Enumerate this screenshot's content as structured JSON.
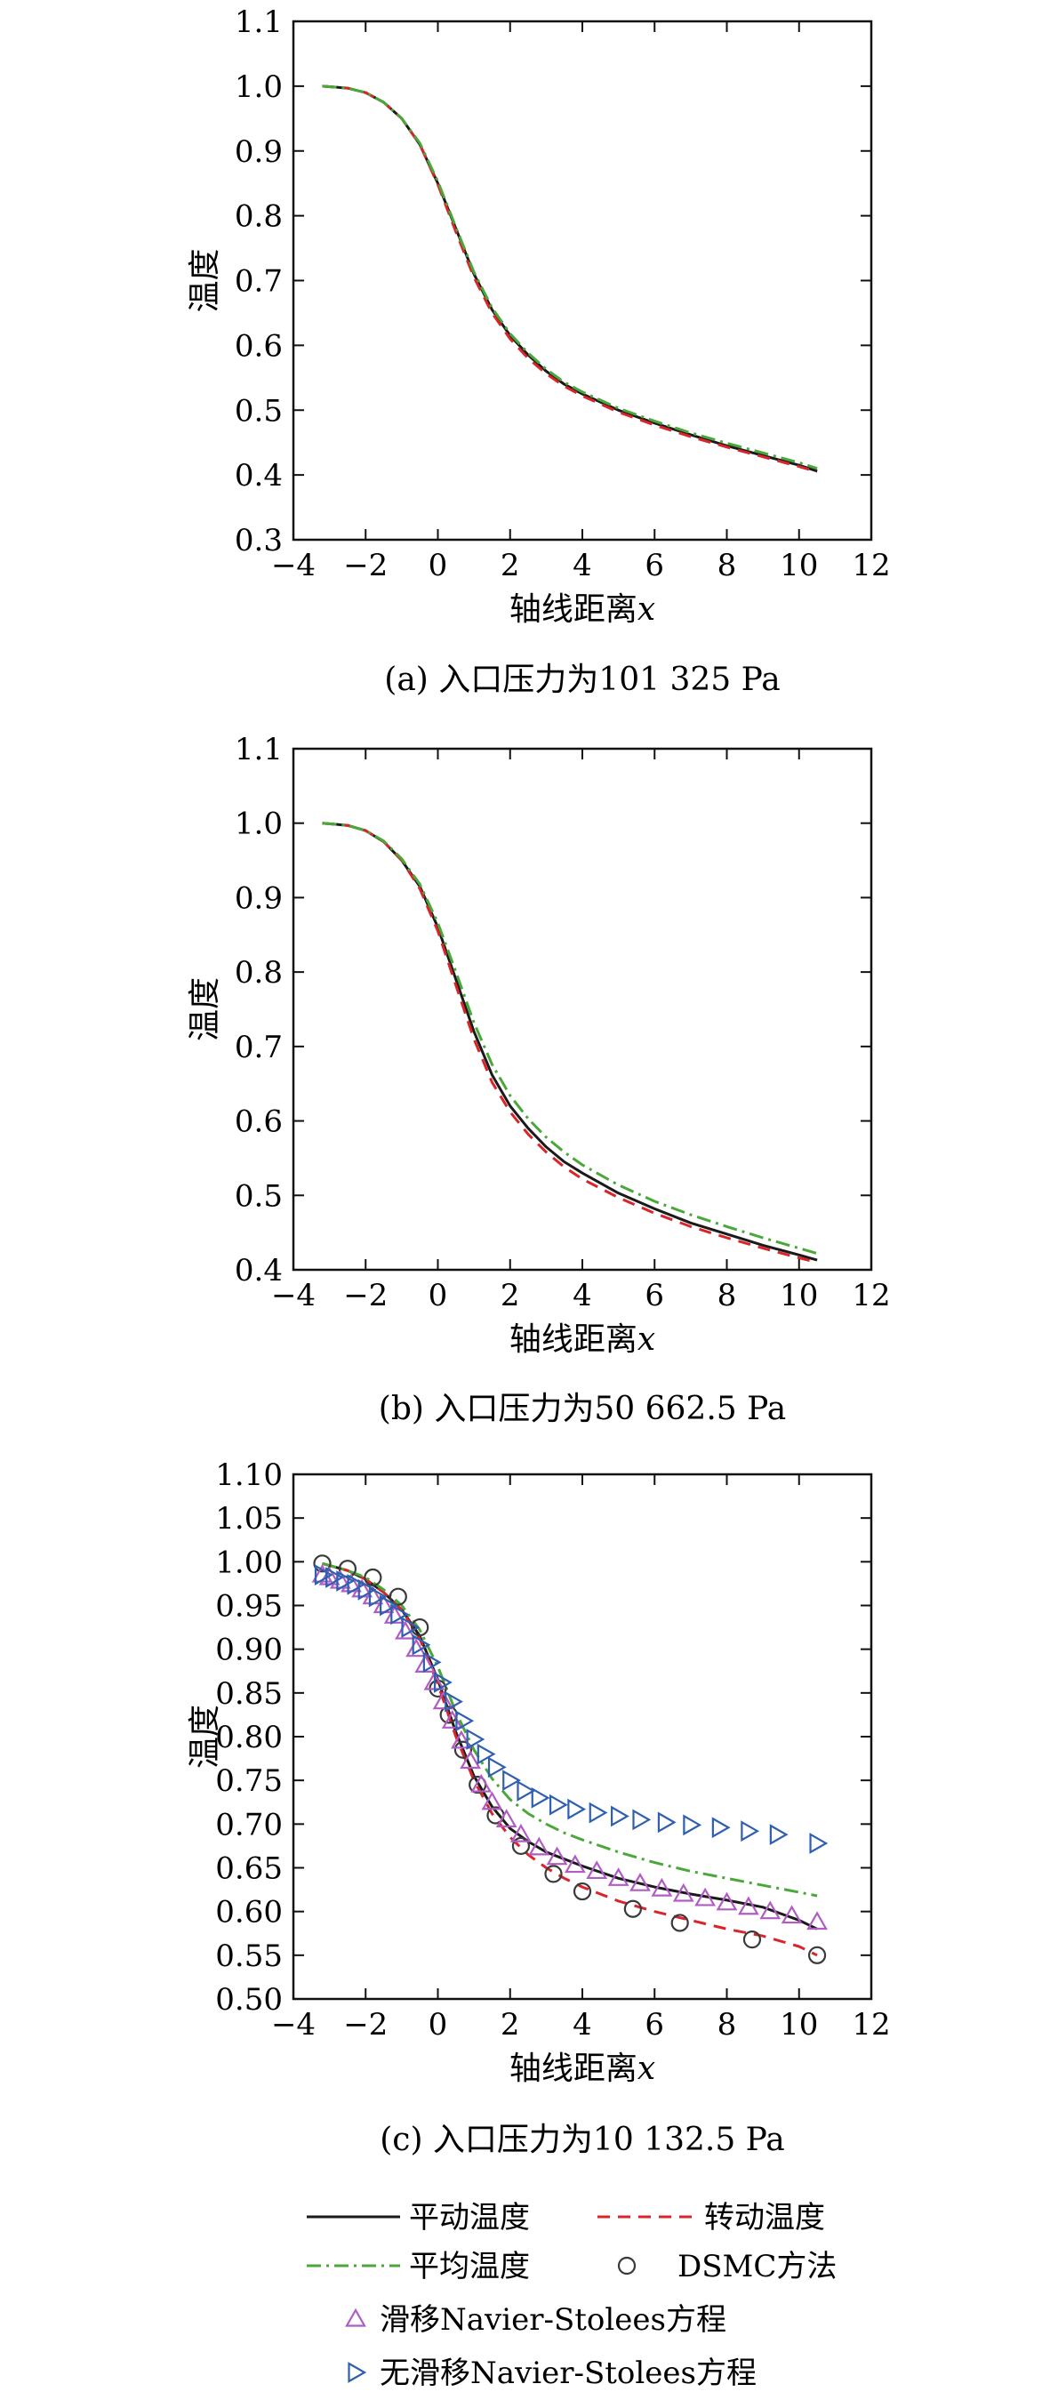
{
  "chart_data": [
    {
      "type": "line",
      "panel": "a",
      "caption": "(a) 入口压力为101 325 Pa",
      "xlabel": "轴线距离x",
      "ylabel": "温度",
      "xlim": [
        -4,
        12
      ],
      "ylim": [
        0.3,
        1.1
      ],
      "xticks": [
        -4,
        -2,
        0,
        2,
        4,
        6,
        8,
        10,
        12
      ],
      "yticks": [
        0.3,
        0.4,
        0.5,
        0.6,
        0.7,
        0.8,
        0.9,
        1.0,
        1.1
      ],
      "ytick_labels": [
        "0.3",
        "0.4",
        "0.5",
        "0.6",
        "0.7",
        "0.8",
        "0.9",
        "1.0",
        "1.1"
      ],
      "grid": false,
      "series": [
        {
          "name": "平动温度",
          "key": "trans",
          "x": [
            -3.2,
            -2.5,
            -2,
            -1.5,
            -1,
            -0.5,
            0,
            0.5,
            1,
            1.5,
            2,
            2.5,
            3,
            3.5,
            4,
            5,
            6,
            7,
            8,
            9,
            10,
            10.5
          ],
          "y": [
            1.0,
            0.997,
            0.99,
            0.975,
            0.95,
            0.91,
            0.85,
            0.78,
            0.71,
            0.655,
            0.615,
            0.585,
            0.56,
            0.54,
            0.525,
            0.5,
            0.48,
            0.462,
            0.445,
            0.43,
            0.415,
            0.406
          ]
        },
        {
          "name": "转动温度",
          "key": "rot",
          "x": [
            -3.2,
            -2.5,
            -2,
            -1.5,
            -1,
            -0.5,
            0,
            0.5,
            1,
            1.5,
            2,
            2.5,
            3,
            3.5,
            4,
            5,
            6,
            7,
            8,
            9,
            10,
            10.5
          ],
          "y": [
            1.0,
            0.997,
            0.99,
            0.975,
            0.95,
            0.91,
            0.848,
            0.775,
            0.705,
            0.65,
            0.61,
            0.58,
            0.556,
            0.537,
            0.522,
            0.497,
            0.477,
            0.459,
            0.443,
            0.428,
            0.413,
            0.405
          ]
        },
        {
          "name": "平均温度",
          "key": "avg",
          "x": [
            -3.2,
            -2.5,
            -2,
            -1.5,
            -1,
            -0.5,
            0,
            0.5,
            1,
            1.5,
            2,
            2.5,
            3,
            3.5,
            4,
            5,
            6,
            7,
            8,
            9,
            10,
            10.5
          ],
          "y": [
            1.0,
            0.997,
            0.99,
            0.975,
            0.95,
            0.912,
            0.853,
            0.782,
            0.713,
            0.658,
            0.618,
            0.588,
            0.563,
            0.543,
            0.528,
            0.503,
            0.483,
            0.465,
            0.449,
            0.434,
            0.419,
            0.41
          ]
        }
      ]
    },
    {
      "type": "line",
      "panel": "b",
      "caption": "(b) 入口压力为50 662.5 Pa",
      "xlabel": "轴线距离x",
      "ylabel": "温度",
      "xlim": [
        -4,
        12
      ],
      "ylim": [
        0.4,
        1.1
      ],
      "xticks": [
        -4,
        -2,
        0,
        2,
        4,
        6,
        8,
        10,
        12
      ],
      "yticks": [
        0.4,
        0.5,
        0.6,
        0.7,
        0.8,
        0.9,
        1.0,
        1.1
      ],
      "ytick_labels": [
        "0.4",
        "0.5",
        "0.6",
        "0.7",
        "0.8",
        "0.9",
        "1.0",
        "1.1"
      ],
      "grid": false,
      "series": [
        {
          "name": "平动温度",
          "key": "trans",
          "x": [
            -3.2,
            -2.5,
            -2,
            -1.5,
            -1,
            -0.5,
            0,
            0.5,
            1,
            1.5,
            2,
            2.5,
            3,
            3.5,
            4,
            5,
            6,
            7,
            8,
            9,
            10,
            10.5
          ],
          "y": [
            1.0,
            0.997,
            0.99,
            0.975,
            0.95,
            0.915,
            0.86,
            0.79,
            0.72,
            0.662,
            0.62,
            0.59,
            0.565,
            0.545,
            0.53,
            0.503,
            0.482,
            0.463,
            0.448,
            0.433,
            0.42,
            0.413
          ]
        },
        {
          "name": "转动温度",
          "key": "rot",
          "x": [
            -3.2,
            -2.5,
            -2,
            -1.5,
            -1,
            -0.5,
            0,
            0.5,
            1,
            1.5,
            2,
            2.5,
            3,
            3.5,
            4,
            5,
            6,
            7,
            8,
            9,
            10,
            10.5
          ],
          "y": [
            1.0,
            0.997,
            0.99,
            0.975,
            0.95,
            0.912,
            0.855,
            0.782,
            0.71,
            0.652,
            0.612,
            0.582,
            0.558,
            0.538,
            0.522,
            0.497,
            0.476,
            0.458,
            0.443,
            0.429,
            0.416,
            0.41
          ]
        },
        {
          "name": "平均温度",
          "key": "avg",
          "x": [
            -3.2,
            -2.5,
            -2,
            -1.5,
            -1,
            -0.5,
            0,
            0.5,
            1,
            1.5,
            2,
            2.5,
            3,
            3.5,
            4,
            5,
            6,
            7,
            8,
            9,
            10,
            10.5
          ],
          "y": [
            1.0,
            0.997,
            0.99,
            0.976,
            0.952,
            0.918,
            0.866,
            0.8,
            0.732,
            0.676,
            0.634,
            0.603,
            0.578,
            0.558,
            0.541,
            0.514,
            0.492,
            0.474,
            0.458,
            0.443,
            0.429,
            0.422
          ]
        }
      ]
    },
    {
      "type": "line",
      "panel": "c",
      "caption": "(c) 入口压力为10 132.5 Pa",
      "xlabel": "轴线距离x",
      "ylabel": "温度",
      "xlim": [
        -4,
        12
      ],
      "ylim": [
        0.5,
        1.1
      ],
      "xticks": [
        -4,
        -2,
        0,
        2,
        4,
        6,
        8,
        10,
        12
      ],
      "yticks": [
        0.5,
        0.55,
        0.6,
        0.65,
        0.7,
        0.75,
        0.8,
        0.85,
        0.9,
        0.95,
        1.0,
        1.05,
        1.1
      ],
      "ytick_labels": [
        "0.50",
        "0.55",
        "0.60",
        "0.65",
        "0.70",
        "0.75",
        "0.80",
        "0.85",
        "0.90",
        "0.95",
        "1.00",
        "1.05",
        "1.10"
      ],
      "grid": false,
      "series": [
        {
          "name": "平动温度",
          "key": "trans",
          "x": [
            -3.2,
            -2.5,
            -2,
            -1.5,
            -1,
            -0.5,
            0,
            0.5,
            1,
            1.5,
            2,
            2.5,
            3,
            3.5,
            4,
            5,
            6,
            7,
            8,
            9,
            10,
            10.5
          ],
          "y": [
            0.998,
            0.99,
            0.98,
            0.965,
            0.945,
            0.915,
            0.865,
            0.805,
            0.755,
            0.72,
            0.695,
            0.68,
            0.668,
            0.66,
            0.652,
            0.638,
            0.628,
            0.62,
            0.613,
            0.605,
            0.59,
            0.58
          ]
        },
        {
          "name": "转动温度",
          "key": "rot",
          "x": [
            -3.2,
            -2.5,
            -2,
            -1.5,
            -1,
            -0.5,
            0,
            0.5,
            1,
            1.5,
            2,
            2.5,
            3,
            3.5,
            4,
            5,
            6,
            7,
            8,
            9,
            10,
            10.5
          ],
          "y": [
            0.998,
            0.99,
            0.98,
            0.965,
            0.945,
            0.912,
            0.86,
            0.8,
            0.75,
            0.712,
            0.685,
            0.665,
            0.65,
            0.638,
            0.628,
            0.612,
            0.6,
            0.59,
            0.58,
            0.572,
            0.56,
            0.55
          ]
        },
        {
          "name": "平均温度",
          "key": "avg",
          "x": [
            -3.2,
            -2.5,
            -2,
            -1.5,
            -1,
            -0.5,
            0,
            0.5,
            1,
            1.5,
            2,
            2.5,
            3,
            3.5,
            4,
            5,
            6,
            7,
            8,
            9,
            10,
            10.5
          ],
          "y": [
            0.998,
            0.99,
            0.982,
            0.968,
            0.95,
            0.922,
            0.88,
            0.828,
            0.785,
            0.752,
            0.728,
            0.712,
            0.7,
            0.69,
            0.682,
            0.668,
            0.656,
            0.646,
            0.638,
            0.63,
            0.622,
            0.618
          ]
        },
        {
          "name": "DSMC方法",
          "key": "dsmc",
          "x": [
            -3.2,
            -2.5,
            -1.8,
            -1.1,
            -0.5,
            0,
            0.3,
            0.7,
            1.1,
            1.6,
            2.3,
            3.2,
            4,
            5.4,
            6.7,
            8.7,
            10.5
          ],
          "y": [
            0.998,
            0.992,
            0.982,
            0.96,
            0.925,
            0.855,
            0.825,
            0.785,
            0.745,
            0.71,
            0.675,
            0.643,
            0.623,
            0.603,
            0.587,
            0.568,
            0.55
          ]
        },
        {
          "name": "滑移Navier-Stolees方程",
          "key": "slip",
          "x": [
            -3.2,
            -3,
            -2.7,
            -2.4,
            -2.1,
            -1.8,
            -1.5,
            -1.2,
            -0.9,
            -0.6,
            -0.35,
            -0.1,
            0.15,
            0.4,
            0.65,
            0.9,
            1.2,
            1.5,
            1.9,
            2.3,
            2.8,
            3.3,
            3.8,
            4.4,
            5,
            5.6,
            6.2,
            6.8,
            7.4,
            8,
            8.6,
            9.2,
            9.8,
            10.5
          ],
          "y": [
            0.985,
            0.982,
            0.978,
            0.974,
            0.968,
            0.96,
            0.95,
            0.938,
            0.92,
            0.9,
            0.882,
            0.862,
            0.84,
            0.818,
            0.795,
            0.772,
            0.745,
            0.725,
            0.705,
            0.688,
            0.673,
            0.662,
            0.653,
            0.646,
            0.638,
            0.632,
            0.626,
            0.62,
            0.615,
            0.61,
            0.605,
            0.6,
            0.595,
            0.588
          ]
        },
        {
          "name": "无滑移Navier-Stolees方程",
          "key": "noslip",
          "x": [
            -3.2,
            -2.9,
            -2.6,
            -2.3,
            -2,
            -1.7,
            -1.4,
            -1.1,
            -0.8,
            -0.5,
            -0.2,
            0.1,
            0.4,
            0.7,
            1,
            1.3,
            1.6,
            2,
            2.4,
            2.8,
            3.3,
            3.8,
            4.4,
            5,
            5.6,
            6.3,
            7,
            7.8,
            8.6,
            9.4,
            10.5
          ],
          "y": [
            0.985,
            0.982,
            0.978,
            0.974,
            0.968,
            0.96,
            0.95,
            0.94,
            0.925,
            0.905,
            0.885,
            0.862,
            0.84,
            0.818,
            0.797,
            0.78,
            0.765,
            0.75,
            0.738,
            0.73,
            0.722,
            0.717,
            0.713,
            0.709,
            0.705,
            0.702,
            0.699,
            0.696,
            0.692,
            0.688,
            0.678
          ]
        }
      ]
    }
  ],
  "legend": {
    "items": [
      {
        "key": "trans",
        "label": "平动温度"
      },
      {
        "key": "rot",
        "label": "转动温度"
      },
      {
        "key": "avg",
        "label": "平均温度"
      },
      {
        "key": "dsmc",
        "label": "DSMC方法"
      },
      {
        "key": "slip",
        "label": "滑移Navier-Stolees方程"
      },
      {
        "key": "noslip",
        "label": "无滑移Navier-Stolees方程"
      }
    ]
  },
  "colors": {
    "trans": "#1a1a1a",
    "rot": "#d9252a",
    "avg": "#4aa83a",
    "dsmc": "#3a3a3a",
    "slip": "#b05cc4",
    "noslip": "#2f5fb0"
  }
}
